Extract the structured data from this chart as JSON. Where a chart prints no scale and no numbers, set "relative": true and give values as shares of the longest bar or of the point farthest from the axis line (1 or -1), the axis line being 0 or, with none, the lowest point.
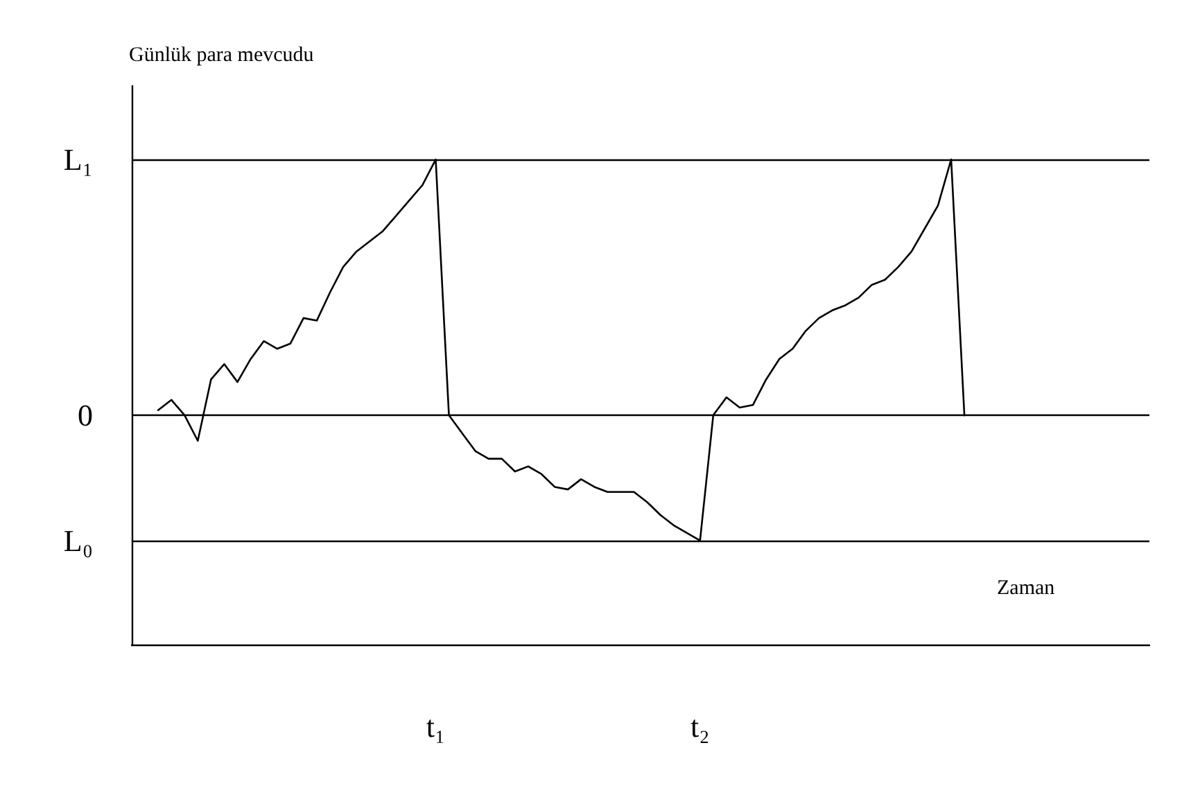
{
  "chart_data": {
    "type": "line",
    "relative": true,
    "xlabel": "Zaman",
    "ylabel": "Günlük para mevcudu",
    "categories": [
      null,
      null,
      null,
      null,
      null,
      null,
      null,
      null,
      null,
      null,
      null,
      null,
      null,
      null,
      null,
      null,
      null,
      null,
      null,
      null,
      null,
      null,
      null,
      "t₁",
      null,
      null,
      null,
      null,
      null,
      null,
      null,
      null,
      null,
      null,
      null,
      null,
      null,
      null,
      null,
      null,
      null,
      null,
      null,
      "t₂",
      null,
      null,
      null,
      null,
      null,
      null,
      null,
      null,
      null,
      null,
      null,
      null,
      null,
      null,
      null,
      null,
      null,
      null,
      null,
      null,
      null,
      null,
      null,
      null,
      null,
      null,
      null,
      null,
      null,
      null,
      null,
      null,
      null,
      null
    ],
    "series": [
      {
        "color": "#000000",
        "values": [
          null,
          null,
          0.02,
          0.06,
          0,
          -0.1,
          0.14,
          0.2,
          0.13,
          0.22,
          0.29,
          0.26,
          0.28,
          0.38,
          0.37,
          0.48,
          0.58,
          0.64,
          0.68,
          0.72,
          0.78,
          0.84,
          0.9,
          1,
          0,
          -0.07,
          -0.14,
          -0.17,
          -0.17,
          -0.22,
          -0.2,
          -0.23,
          -0.28,
          -0.29,
          -0.25,
          -0.28,
          -0.3,
          -0.3,
          -0.3,
          -0.34,
          -0.39,
          -0.43,
          -0.46,
          -0.49,
          0,
          0.07,
          0.03,
          0.04,
          0.14,
          0.22,
          0.26,
          0.33,
          0.38,
          0.41,
          0.43,
          0.46,
          0.51,
          0.53,
          0.58,
          0.64,
          0.73,
          0.82,
          1,
          0,
          null,
          null,
          null,
          null,
          null,
          null,
          null,
          null,
          null,
          null,
          null,
          null,
          null,
          null
        ]
      }
    ],
    "ref_lines": [
      {
        "axis": "y",
        "value": 1,
        "label": "L₁",
        "color": "#000000"
      },
      {
        "axis": "y",
        "value": 0,
        "label": "0",
        "color": "#000000"
      },
      {
        "axis": "y",
        "value": -0.49,
        "label": "L₀",
        "color": "#000000"
      }
    ],
    "grid": false,
    "marker": "none",
    "line_style": "solid"
  }
}
